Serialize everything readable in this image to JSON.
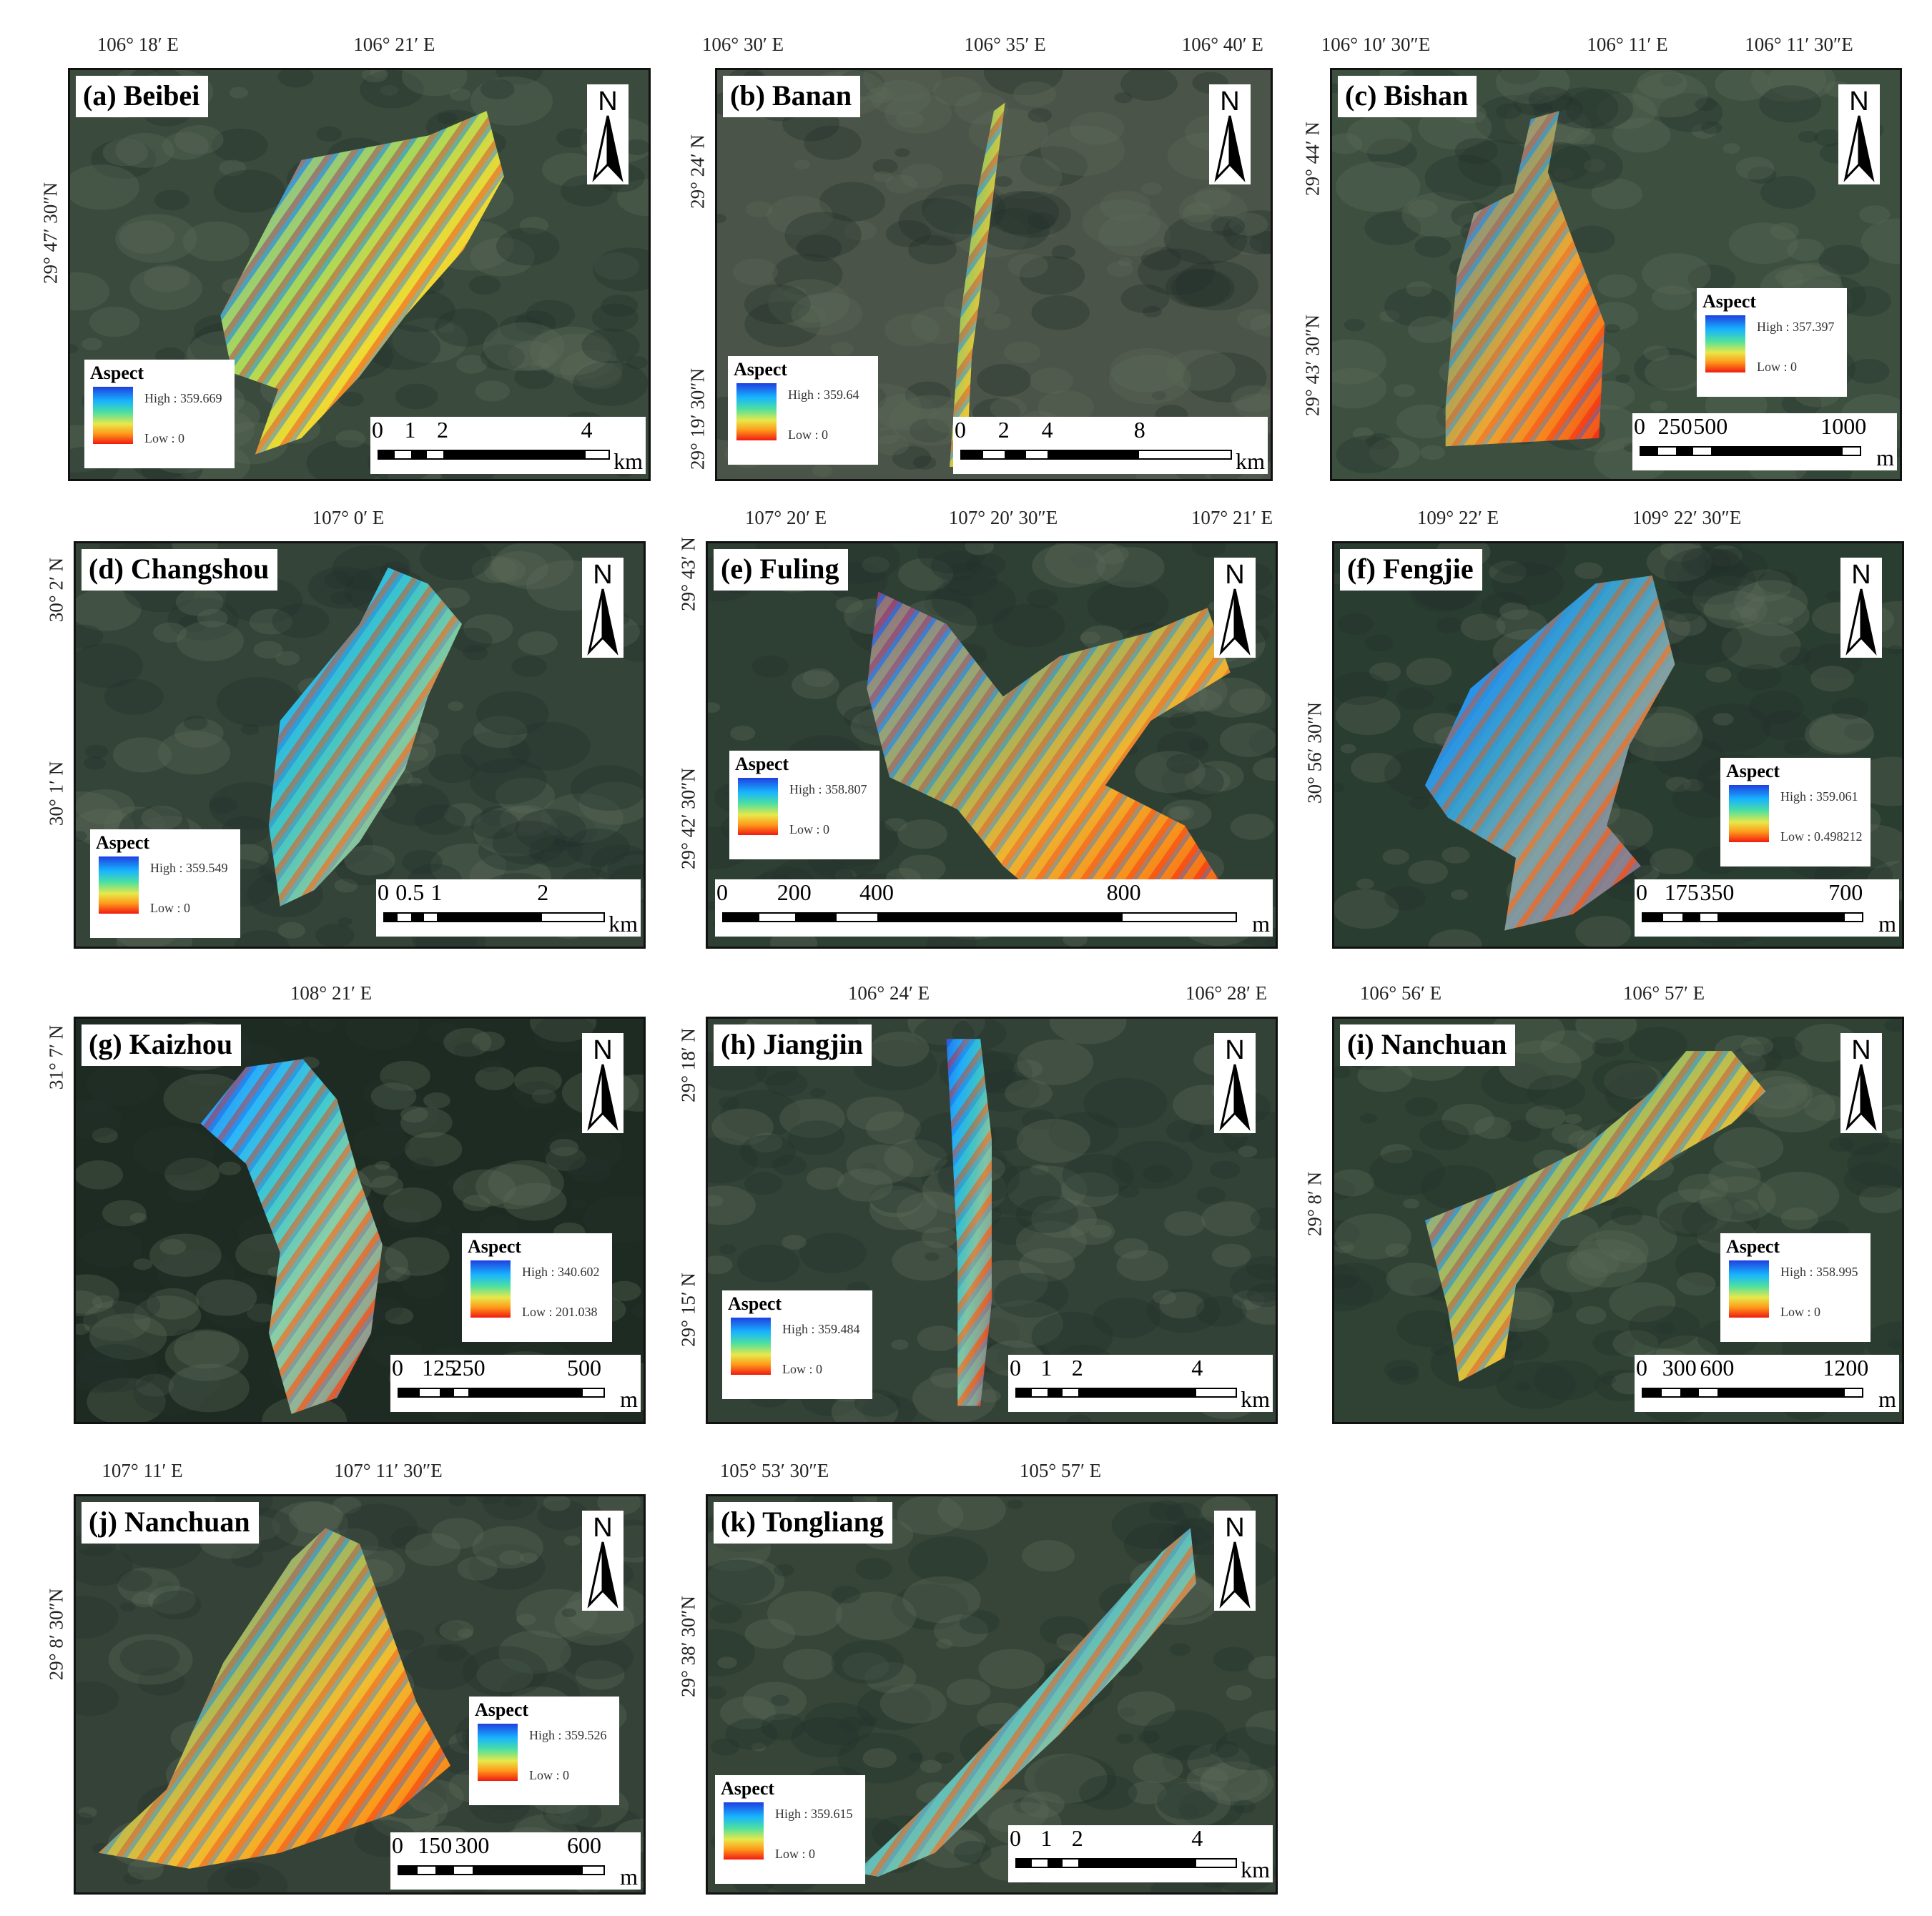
{
  "panels": [
    {
      "label": "(a) Beibei",
      "coords_top": [
        "106° 18′ E",
        "106° 21′ E"
      ],
      "coords_left": [
        "29° 47′ 30″N"
      ],
      "legend": {
        "title": "Aspect",
        "high": "High : 359.669",
        "low": "Low : 0"
      },
      "scale": {
        "ticks": [
          "0",
          "1",
          "2",
          "4"
        ],
        "unit": "km"
      },
      "north": "N",
      "imagery_colors": {
        "background": "#3a4a3c",
        "dominant": "#f3d020"
      }
    },
    {
      "label": "(b) Banan",
      "coords_top": [
        "106° 30′ E",
        "106° 35′ E",
        "106° 40′ E"
      ],
      "coords_left": [
        "29° 24′ N",
        "29° 19′ 30″N"
      ],
      "legend": {
        "title": "Aspect",
        "high": "High : 359.64",
        "low": "Low : 0"
      },
      "scale": {
        "ticks": [
          "0",
          "2",
          "4",
          "8"
        ],
        "unit": "km"
      },
      "north": "N",
      "imagery_colors": {
        "background": "#4a5448",
        "dominant": "#f0b020"
      }
    },
    {
      "label": "(c) Bishan",
      "coords_top": [
        "106° 10′ 30″E",
        "106° 11′ E",
        "106° 11′ 30″E"
      ],
      "coords_left": [
        "29° 44′ N",
        "29° 43′ 30″N"
      ],
      "legend": {
        "title": "Aspect",
        "high": "High : 357.397",
        "low": "Low : 0"
      },
      "scale": {
        "ticks": [
          "0",
          "250",
          "500",
          "1000"
        ],
        "unit": "m"
      },
      "north": "N",
      "imagery_colors": {
        "background": "#3d5040",
        "dominant": "#f07020"
      }
    },
    {
      "label": "(d) Changshou",
      "coords_top": [
        "107° 0′ E"
      ],
      "coords_left": [
        "30° 2′ N",
        "30° 1′ N"
      ],
      "legend": {
        "title": "Aspect",
        "high": "High : 359.549",
        "low": "Low : 0"
      },
      "scale": {
        "ticks": [
          "0",
          "0.5",
          "1",
          "2"
        ],
        "unit": "km"
      },
      "north": "N",
      "imagery_colors": {
        "background": "#344438",
        "dominant": "#30b0e8"
      }
    },
    {
      "label": "(e) Fuling",
      "coords_top": [
        "107° 20′ E",
        "107° 20′ 30″E",
        "107° 21′ E"
      ],
      "coords_left": [
        "29° 43′ N",
        "29° 42′ 30″N"
      ],
      "legend": {
        "title": "Aspect",
        "high": "High : 358.807",
        "low": "Low : 0"
      },
      "scale": {
        "ticks": [
          "0",
          "200",
          "400",
          "800"
        ],
        "unit": "m"
      },
      "north": "N",
      "imagery_colors": {
        "background": "#2e4034",
        "dominant": "#f28a1c"
      }
    },
    {
      "label": "(f) Fengjie",
      "coords_top": [
        "109° 22′ E",
        "109° 22′ 30″E"
      ],
      "coords_left": [
        "30° 56′ 30″N"
      ],
      "legend": {
        "title": "Aspect",
        "high": "High : 359.061",
        "low": "Low : 0.498212"
      },
      "scale": {
        "ticks": [
          "0",
          "175",
          "350",
          "700"
        ],
        "unit": "m"
      },
      "north": "N",
      "imagery_colors": {
        "background": "#2a3d31",
        "dominant": "#2a6cf0"
      }
    },
    {
      "label": "(g) Kaizhou",
      "coords_top": [
        "108° 21′ E"
      ],
      "coords_left": [
        "31° 7′ N"
      ],
      "legend": {
        "title": "Aspect",
        "high": "High : 340.602",
        "low": "Low : 201.038"
      },
      "scale": {
        "ticks": [
          "0",
          "125",
          "250",
          "500"
        ],
        "unit": "m"
      },
      "north": "N",
      "imagery_colors": {
        "background": "#1e2b22",
        "dominant": "#3cb8f0"
      }
    },
    {
      "label": "(h) Jiangjin",
      "coords_top": [
        "106° 24′ E",
        "106° 28′ E"
      ],
      "coords_left": [
        "29° 18′ N",
        "29° 15′ N"
      ],
      "legend": {
        "title": "Aspect",
        "high": "High : 359.484",
        "low": "Low : 0"
      },
      "scale": {
        "ticks": [
          "0",
          "1",
          "2",
          "4"
        ],
        "unit": "km"
      },
      "north": "N",
      "imagery_colors": {
        "background": "#334236",
        "dominant": "#28a8f0"
      }
    },
    {
      "label": "(i) Nanchuan",
      "coords_top": [
        "106° 56′ E",
        "106° 57′ E"
      ],
      "coords_left": [
        "29° 8′ N"
      ],
      "legend": {
        "title": "Aspect",
        "high": "High : 358.995",
        "low": "Low : 0"
      },
      "scale": {
        "ticks": [
          "0",
          "300",
          "600",
          "1200"
        ],
        "unit": "m"
      },
      "north": "N",
      "imagery_colors": {
        "background": "#2f4234",
        "dominant": "#f2a020"
      }
    },
    {
      "label": "(j) Nanchuan",
      "coords_top": [
        "107° 11′ E",
        "107° 11′ 30″E"
      ],
      "coords_left": [
        "29° 8′ 30″N"
      ],
      "legend": {
        "title": "Aspect",
        "high": "High : 359.526",
        "low": "Low : 0"
      },
      "scale": {
        "ticks": [
          "0",
          "150",
          "300",
          "600"
        ],
        "unit": "m"
      },
      "north": "N",
      "imagery_colors": {
        "background": "#354238",
        "dominant": "#f59a1c"
      }
    },
    {
      "label": "(k) Tongliang",
      "coords_top": [
        "105° 53′ 30″E",
        "105° 57′ E"
      ],
      "coords_left": [
        "29° 38′ 30″N"
      ],
      "legend": {
        "title": "Aspect",
        "high": "High : 359.615",
        "low": "Low : 0"
      },
      "scale": {
        "ticks": [
          "0",
          "1",
          "2",
          "4"
        ],
        "unit": "km"
      },
      "north": "N",
      "imagery_colors": {
        "background": "#364538",
        "dominant": "#30a0f0"
      }
    }
  ]
}
